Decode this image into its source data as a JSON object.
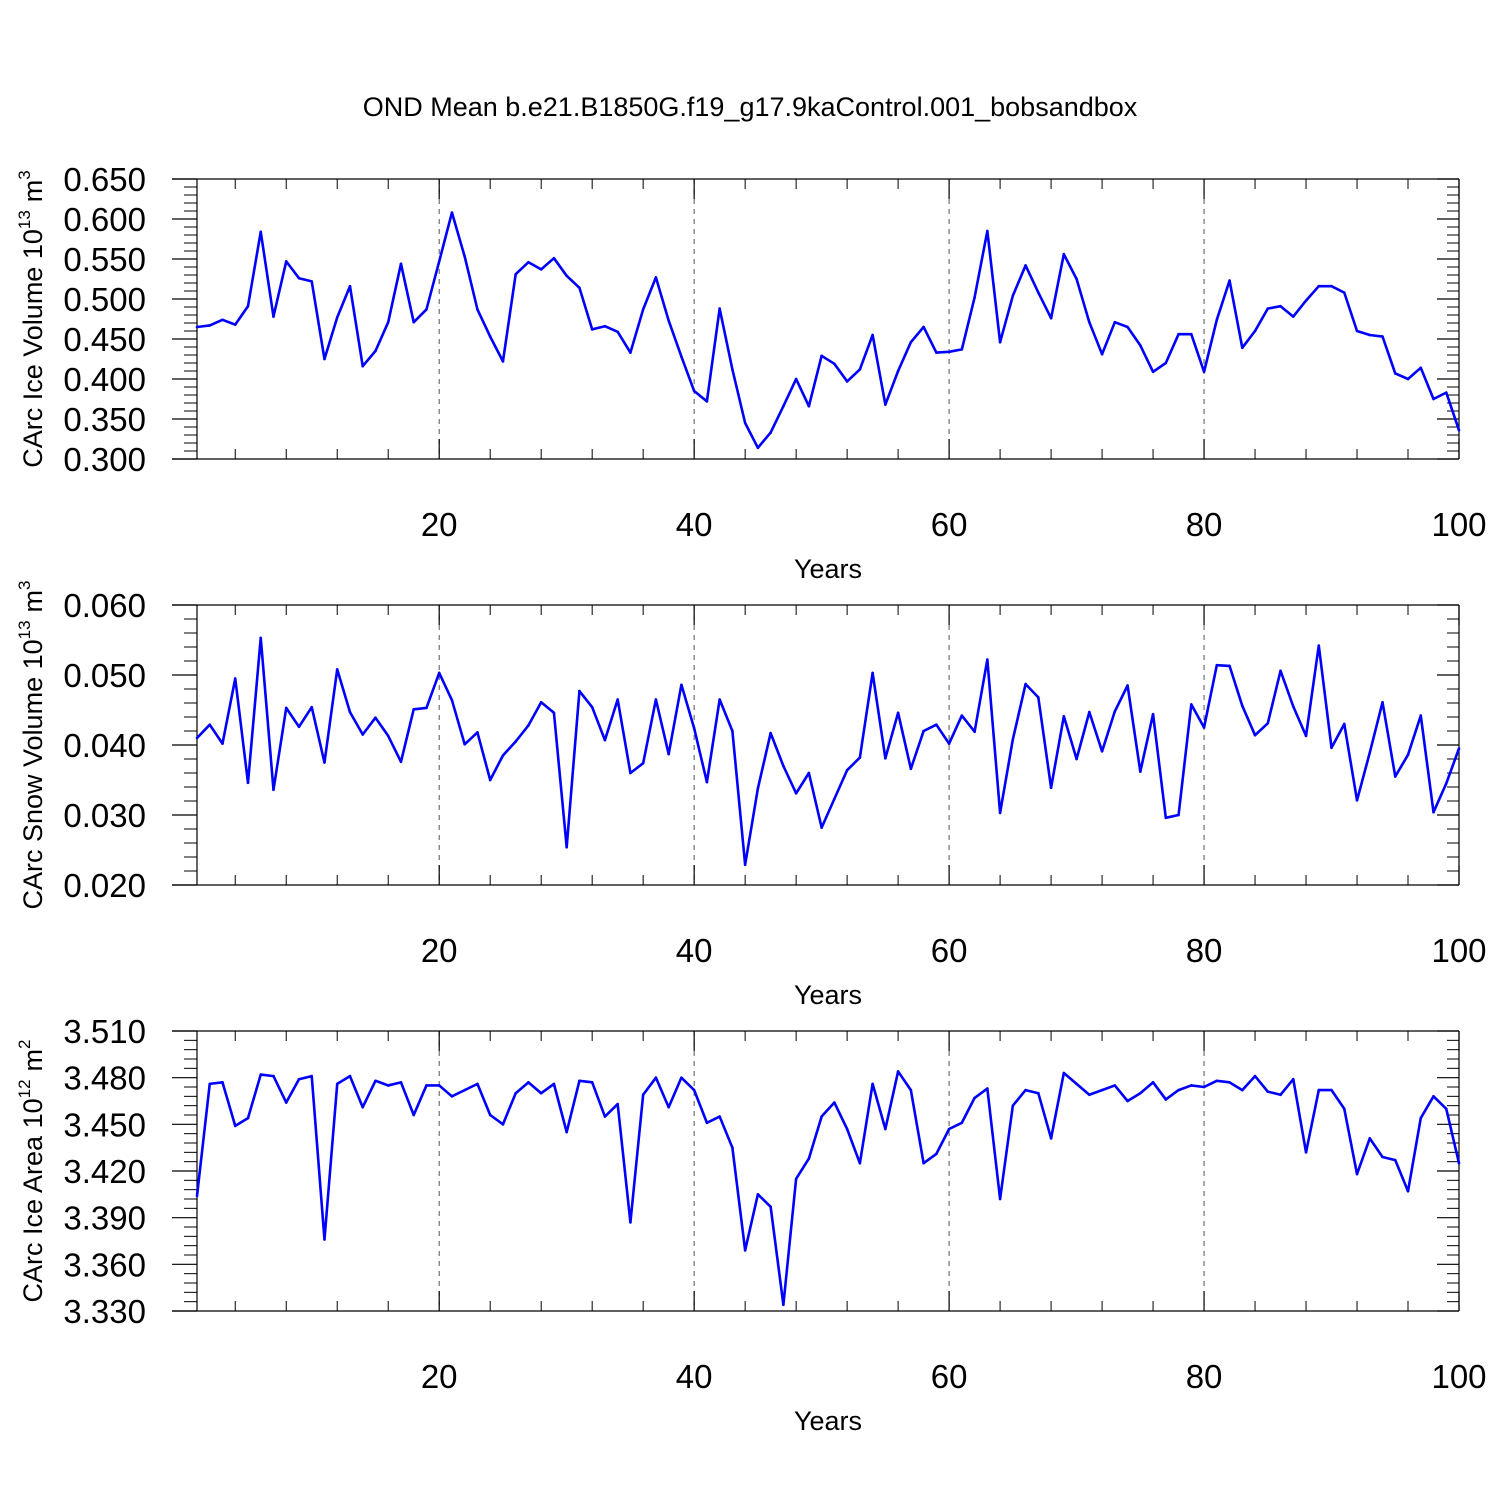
{
  "title": "OND Mean b.e21.B1850G.f19_g17.9kaControl.001_bobsandbox",
  "colors": {
    "series": "#0000ff",
    "axis": "#000000",
    "grid": "#555555"
  },
  "chart_data": [
    {
      "type": "line",
      "name": "ice-volume",
      "xlabel": "Years",
      "ylabel_main": "CArc Ice Volume 10",
      "ylabel_exp": "13",
      "ylabel_unit": "m",
      "ylabel_unit_exp": "3",
      "xlim": [
        1,
        100
      ],
      "ylim": [
        0.3,
        0.65
      ],
      "yticks": [
        0.3,
        0.35,
        0.4,
        0.45,
        0.5,
        0.55,
        0.6,
        0.65
      ],
      "ytick_labels": [
        "0.300",
        "0.350",
        "0.400",
        "0.450",
        "0.500",
        "0.550",
        "0.600",
        "0.650"
      ],
      "xticks": [
        20,
        40,
        60,
        80,
        100
      ],
      "xtick_labels": [
        "20",
        "40",
        "60",
        "80",
        "100"
      ],
      "grid_x": [
        20,
        40,
        60,
        80
      ],
      "x_start": 1,
      "values": [
        0.465,
        0.467,
        0.474,
        0.468,
        0.491,
        0.584,
        0.478,
        0.547,
        0.526,
        0.522,
        0.425,
        0.477,
        0.516,
        0.416,
        0.435,
        0.471,
        0.544,
        0.471,
        0.487,
        0.547,
        0.608,
        0.553,
        0.487,
        0.453,
        0.422,
        0.531,
        0.546,
        0.537,
        0.551,
        0.529,
        0.514,
        0.462,
        0.466,
        0.459,
        0.433,
        0.487,
        0.527,
        0.473,
        0.428,
        0.385,
        0.372,
        0.488,
        0.412,
        0.345,
        0.314,
        0.333,
        0.366,
        0.4,
        0.366,
        0.429,
        0.419,
        0.397,
        0.412,
        0.455,
        0.368,
        0.41,
        0.446,
        0.465,
        0.433,
        0.434,
        0.437,
        0.502,
        0.585,
        0.446,
        0.504,
        0.542,
        0.508,
        0.476,
        0.556,
        0.525,
        0.471,
        0.431,
        0.471,
        0.465,
        0.442,
        0.409,
        0.42,
        0.456,
        0.456,
        0.409,
        0.474,
        0.523,
        0.439,
        0.46,
        0.488,
        0.491,
        0.478,
        0.498,
        0.516,
        0.516,
        0.508,
        0.46,
        0.455,
        0.453,
        0.407,
        0.4,
        0.414,
        0.375,
        0.383,
        0.336
      ]
    },
    {
      "type": "line",
      "name": "snow-volume",
      "xlabel": "Years",
      "ylabel_main": "CArc Snow Volume 10",
      "ylabel_exp": "13",
      "ylabel_unit": "m",
      "ylabel_unit_exp": "3",
      "xlim": [
        1,
        100
      ],
      "ylim": [
        0.02,
        0.06
      ],
      "yticks": [
        0.02,
        0.03,
        0.04,
        0.05,
        0.06
      ],
      "ytick_labels": [
        "0.020",
        "0.030",
        "0.040",
        "0.050",
        "0.060"
      ],
      "xticks": [
        20,
        40,
        60,
        80,
        100
      ],
      "xtick_labels": [
        "20",
        "40",
        "60",
        "80",
        "100"
      ],
      "grid_x": [
        20,
        40,
        60,
        80
      ],
      "x_start": 1,
      "values": [
        0.041,
        0.0429,
        0.0402,
        0.0495,
        0.0346,
        0.0553,
        0.0336,
        0.0453,
        0.0426,
        0.0454,
        0.0375,
        0.0508,
        0.0447,
        0.0415,
        0.0439,
        0.0413,
        0.0376,
        0.0451,
        0.0453,
        0.0503,
        0.0464,
        0.0401,
        0.0418,
        0.035,
        0.0385,
        0.0405,
        0.0428,
        0.0461,
        0.0446,
        0.0254,
        0.0477,
        0.0454,
        0.0407,
        0.0465,
        0.036,
        0.0374,
        0.0465,
        0.0387,
        0.0486,
        0.0424,
        0.0347,
        0.0465,
        0.042,
        0.0229,
        0.0338,
        0.0417,
        0.037,
        0.0331,
        0.036,
        0.0282,
        0.0323,
        0.0364,
        0.0382,
        0.0503,
        0.0381,
        0.0446,
        0.0366,
        0.042,
        0.0429,
        0.0402,
        0.0442,
        0.0419,
        0.0522,
        0.0303,
        0.0408,
        0.0487,
        0.0468,
        0.0339,
        0.0441,
        0.038,
        0.0447,
        0.0391,
        0.0448,
        0.0485,
        0.0362,
        0.0444,
        0.0296,
        0.03,
        0.0458,
        0.0425,
        0.0514,
        0.0513,
        0.0456,
        0.0414,
        0.0431,
        0.0506,
        0.0455,
        0.0413,
        0.0542,
        0.0396,
        0.043,
        0.0321,
        0.0389,
        0.0461,
        0.0355,
        0.0386,
        0.0442,
        0.0304,
        0.0345,
        0.0395
      ]
    },
    {
      "type": "line",
      "name": "ice-area",
      "xlabel": "Years",
      "ylabel_main": "CArc Ice Area 10",
      "ylabel_exp": "12",
      "ylabel_unit": "m",
      "ylabel_unit_exp": "2",
      "xlim": [
        1,
        100
      ],
      "ylim": [
        3.33,
        3.51
      ],
      "yticks": [
        3.33,
        3.36,
        3.39,
        3.42,
        3.45,
        3.48,
        3.51
      ],
      "ytick_labels": [
        "3.330",
        "3.360",
        "3.390",
        "3.420",
        "3.450",
        "3.480",
        "3.510"
      ],
      "xticks": [
        20,
        40,
        60,
        80,
        100
      ],
      "xtick_labels": [
        "20",
        "40",
        "60",
        "80",
        "100"
      ],
      "grid_x": [
        20,
        40,
        60,
        80
      ],
      "x_start": 1,
      "values": [
        3.404,
        3.476,
        3.477,
        3.449,
        3.454,
        3.482,
        3.481,
        3.464,
        3.479,
        3.481,
        3.376,
        3.476,
        3.481,
        3.461,
        3.478,
        3.475,
        3.477,
        3.456,
        3.475,
        3.475,
        3.468,
        3.472,
        3.476,
        3.456,
        3.45,
        3.47,
        3.477,
        3.47,
        3.476,
        3.445,
        3.478,
        3.477,
        3.455,
        3.463,
        3.387,
        3.469,
        3.48,
        3.461,
        3.48,
        3.472,
        3.451,
        3.455,
        3.435,
        3.369,
        3.405,
        3.397,
        3.334,
        3.415,
        3.428,
        3.455,
        3.464,
        3.447,
        3.425,
        3.476,
        3.447,
        3.484,
        3.472,
        3.425,
        3.431,
        3.447,
        3.451,
        3.467,
        3.473,
        3.402,
        3.462,
        3.472,
        3.47,
        3.441,
        3.483,
        3.476,
        3.469,
        3.472,
        3.475,
        3.465,
        3.47,
        3.477,
        3.466,
        3.472,
        3.475,
        3.474,
        3.478,
        3.477,
        3.472,
        3.481,
        3.471,
        3.469,
        3.479,
        3.432,
        3.472,
        3.472,
        3.46,
        3.418,
        3.441,
        3.429,
        3.427,
        3.407,
        3.454,
        3.468,
        3.46,
        3.425
      ]
    }
  ]
}
